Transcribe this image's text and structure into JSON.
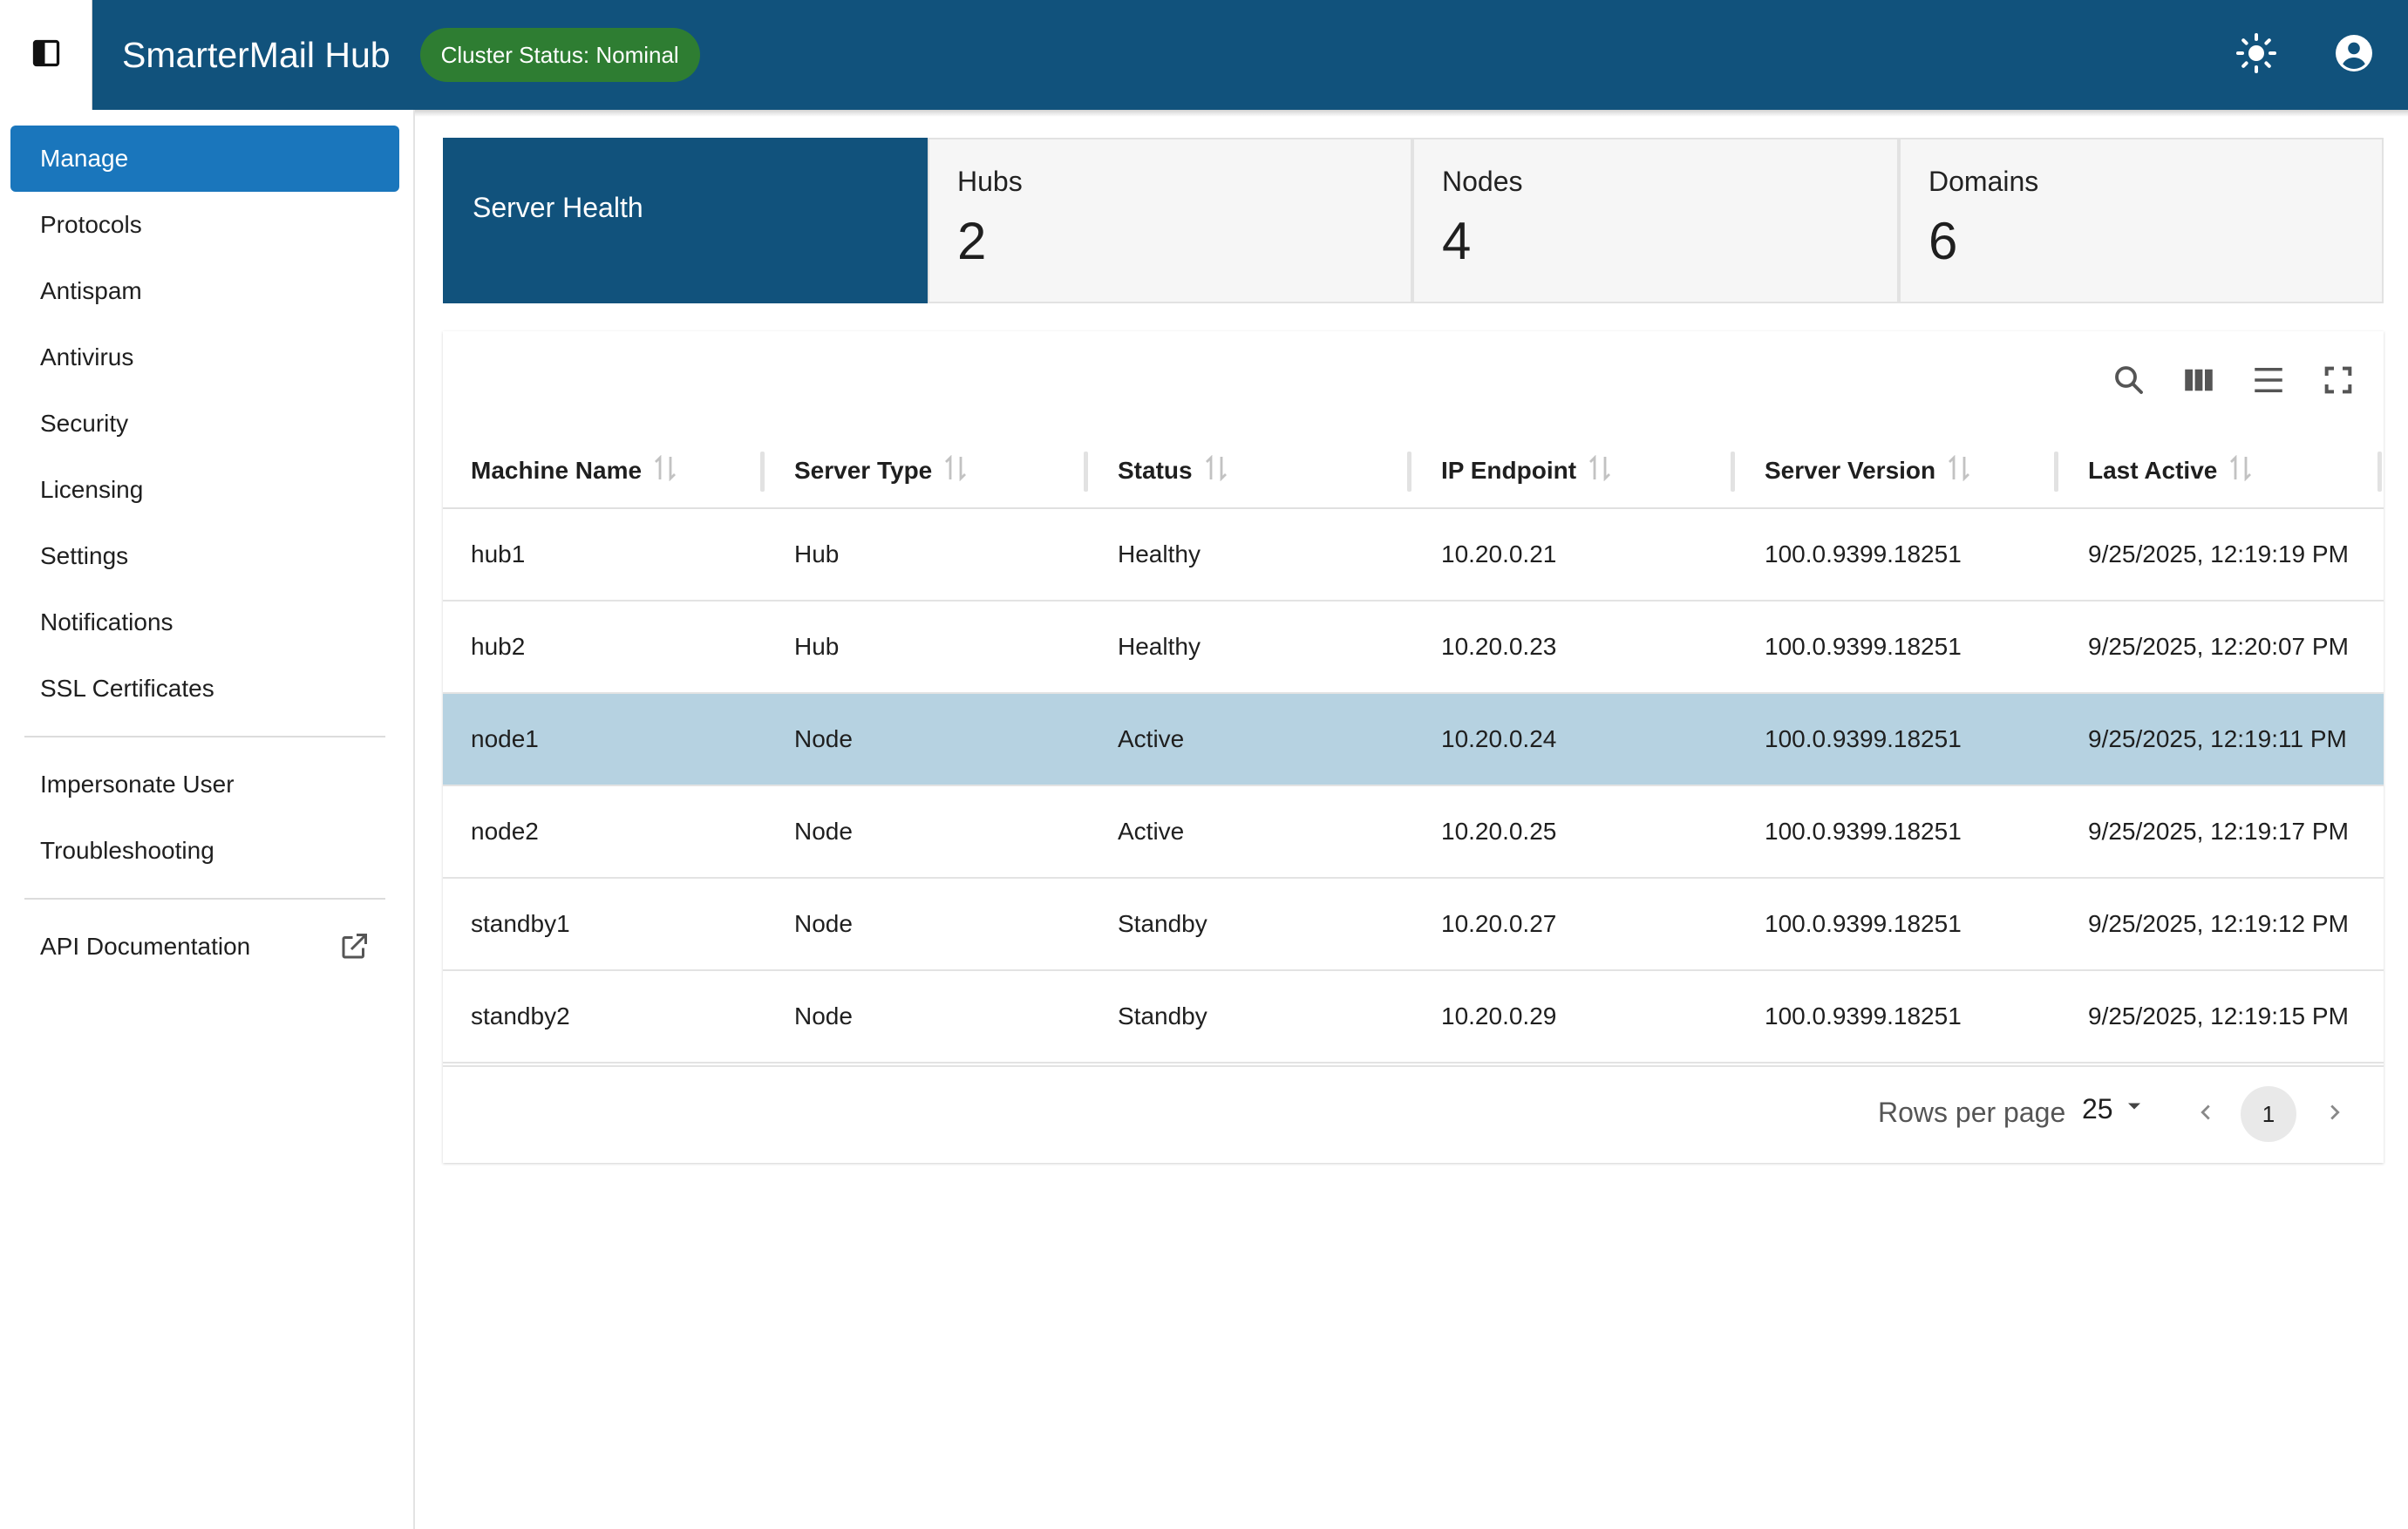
{
  "header": {
    "app_title": "SmarterMail Hub",
    "cluster_status": "Cluster Status: Nominal",
    "icons": [
      "sidebar-toggle-icon",
      "sun-icon",
      "account-icon"
    ]
  },
  "sidebar": {
    "items": [
      {
        "label": "Manage",
        "active": true
      },
      {
        "label": "Protocols"
      },
      {
        "label": "Antispam"
      },
      {
        "label": "Antivirus"
      },
      {
        "label": "Security"
      },
      {
        "label": "Licensing"
      },
      {
        "label": "Settings"
      },
      {
        "label": "Notifications"
      },
      {
        "label": "SSL Certificates"
      }
    ],
    "secondary": [
      {
        "label": "Impersonate User"
      },
      {
        "label": "Troubleshooting"
      }
    ],
    "api_docs": {
      "label": "API Documentation",
      "icon": "external-link-icon"
    }
  },
  "stats": {
    "active_tab": "Server Health",
    "cards": [
      {
        "label": "Hubs",
        "value": "2"
      },
      {
        "label": "Nodes",
        "value": "4"
      },
      {
        "label": "Domains",
        "value": "6"
      }
    ]
  },
  "table": {
    "toolbar_icons": [
      "search-icon",
      "columns-icon",
      "density-icon",
      "fullscreen-icon"
    ],
    "columns": [
      "Machine Name",
      "Server Type",
      "Status",
      "IP Endpoint",
      "Server Version",
      "Last Active"
    ],
    "rows": [
      {
        "cells": [
          "hub1",
          "Hub",
          "Healthy",
          "10.20.0.21",
          "100.0.9399.18251",
          "9/25/2025, 12:19:19 PM"
        ],
        "selected": false
      },
      {
        "cells": [
          "hub2",
          "Hub",
          "Healthy",
          "10.20.0.23",
          "100.0.9399.18251",
          "9/25/2025, 12:20:07 PM"
        ],
        "selected": false
      },
      {
        "cells": [
          "node1",
          "Node",
          "Active",
          "10.20.0.24",
          "100.0.9399.18251",
          "9/25/2025, 12:19:11 PM"
        ],
        "selected": true
      },
      {
        "cells": [
          "node2",
          "Node",
          "Active",
          "10.20.0.25",
          "100.0.9399.18251",
          "9/25/2025, 12:19:17 PM"
        ],
        "selected": false
      },
      {
        "cells": [
          "standby1",
          "Node",
          "Standby",
          "10.20.0.27",
          "100.0.9399.18251",
          "9/25/2025, 12:19:12 PM"
        ],
        "selected": false
      },
      {
        "cells": [
          "standby2",
          "Node",
          "Standby",
          "10.20.0.29",
          "100.0.9399.18251",
          "9/25/2025, 12:19:15 PM"
        ],
        "selected": false
      }
    ],
    "pagination": {
      "rows_per_page_label": "Rows per page",
      "rows_per_page": "25",
      "current_page": "1"
    }
  },
  "colors": {
    "header_bg": "#11527c",
    "badge_green": "#2e7d32",
    "nav_active": "#1a76bc",
    "selected_row": "#b6d2e1"
  }
}
